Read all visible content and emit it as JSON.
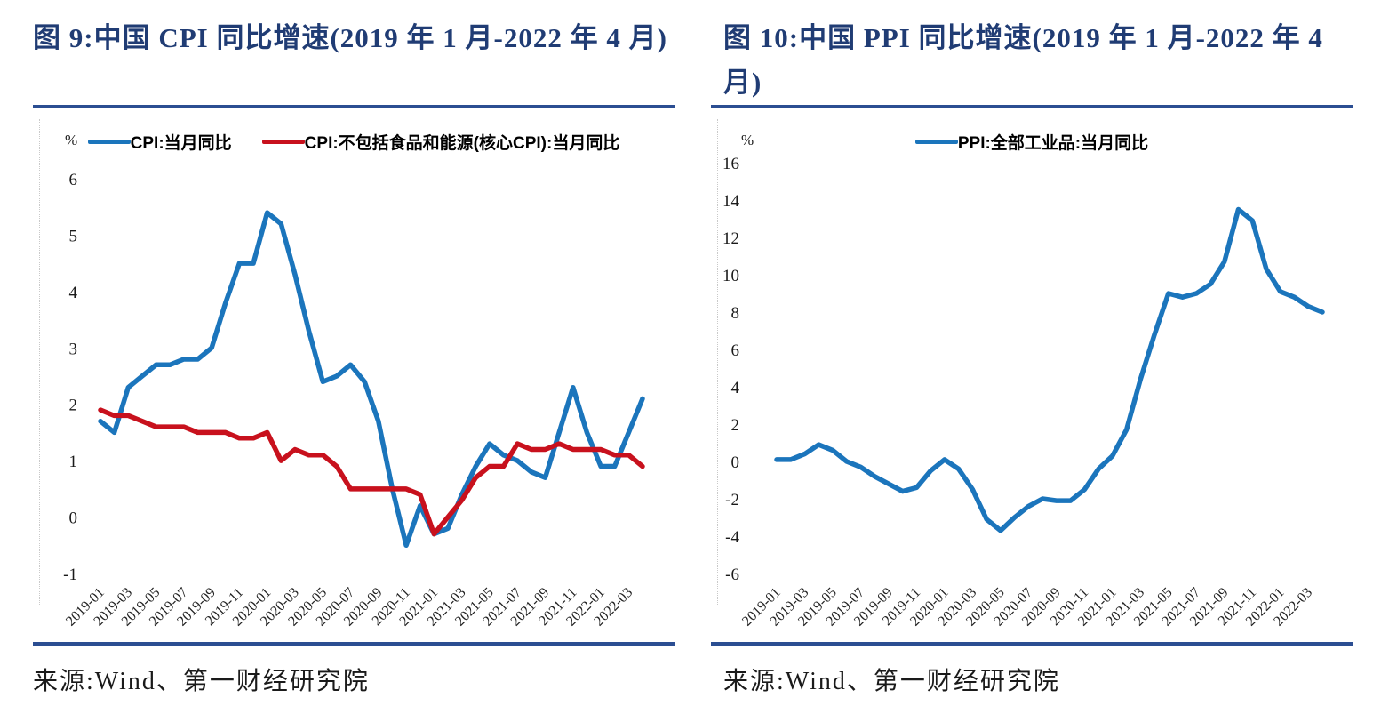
{
  "chart_data": [
    {
      "type": "line",
      "title": "图 9:中国 CPI 同比增速(2019 年 1 月-2022 年 4 月)",
      "unit": "%",
      "grid": false,
      "legend_position": "top-center",
      "x": [
        "2019-01",
        "2019-02",
        "2019-03",
        "2019-04",
        "2019-05",
        "2019-06",
        "2019-07",
        "2019-08",
        "2019-09",
        "2019-10",
        "2019-11",
        "2019-12",
        "2020-01",
        "2020-02",
        "2020-03",
        "2020-04",
        "2020-05",
        "2020-06",
        "2020-07",
        "2020-08",
        "2020-09",
        "2020-10",
        "2020-11",
        "2020-12",
        "2021-01",
        "2021-02",
        "2021-03",
        "2021-04",
        "2021-05",
        "2021-06",
        "2021-07",
        "2021-08",
        "2021-09",
        "2021-10",
        "2021-11",
        "2021-12",
        "2022-01",
        "2022-02",
        "2022-03",
        "2022-04"
      ],
      "xtick_every": 2,
      "ylim": [
        -1,
        6
      ],
      "ytick_step": 1,
      "series": [
        {
          "name": "CPI:当月同比",
          "color": "#1b75bc",
          "values": [
            1.7,
            1.5,
            2.3,
            2.5,
            2.7,
            2.7,
            2.8,
            2.8,
            3.0,
            3.8,
            4.5,
            4.5,
            5.4,
            5.2,
            4.3,
            3.3,
            2.4,
            2.5,
            2.7,
            2.4,
            1.7,
            0.5,
            -0.5,
            0.2,
            -0.3,
            -0.2,
            0.4,
            0.9,
            1.3,
            1.1,
            1.0,
            0.8,
            0.7,
            1.5,
            2.3,
            1.5,
            0.9,
            0.9,
            1.5,
            2.1
          ]
        },
        {
          "name": "CPI:不包括食品和能源(核心CPI):当月同比",
          "color": "#c8111d",
          "values": [
            1.9,
            1.8,
            1.8,
            1.7,
            1.6,
            1.6,
            1.6,
            1.5,
            1.5,
            1.5,
            1.4,
            1.4,
            1.5,
            1.0,
            1.2,
            1.1,
            1.1,
            0.9,
            0.5,
            0.5,
            0.5,
            0.5,
            0.5,
            0.4,
            -0.3,
            0.0,
            0.3,
            0.7,
            0.9,
            0.9,
            1.3,
            1.2,
            1.2,
            1.3,
            1.2,
            1.2,
            1.2,
            1.1,
            1.1,
            0.9
          ]
        }
      ],
      "source": "来源:Wind、第一财经研究院"
    },
    {
      "type": "line",
      "title": "图 10:中国 PPI 同比增速(2019 年 1 月-2022 年 4 月)",
      "unit": "%",
      "grid": false,
      "legend_position": "top-center",
      "x": [
        "2019-01",
        "2019-02",
        "2019-03",
        "2019-04",
        "2019-05",
        "2019-06",
        "2019-07",
        "2019-08",
        "2019-09",
        "2019-10",
        "2019-11",
        "2019-12",
        "2020-01",
        "2020-02",
        "2020-03",
        "2020-04",
        "2020-05",
        "2020-06",
        "2020-07",
        "2020-08",
        "2020-09",
        "2020-10",
        "2020-11",
        "2020-12",
        "2021-01",
        "2021-02",
        "2021-03",
        "2021-04",
        "2021-05",
        "2021-06",
        "2021-07",
        "2021-08",
        "2021-09",
        "2021-10",
        "2021-11",
        "2021-12",
        "2022-01",
        "2022-02",
        "2022-03",
        "2022-04"
      ],
      "xtick_every": 2,
      "ylim": [
        -6,
        16
      ],
      "ytick_step": 2,
      "series": [
        {
          "name": "PPI:全部工业品:当月同比",
          "color": "#1b75bc",
          "values": [
            0.1,
            0.1,
            0.4,
            0.9,
            0.6,
            0.0,
            -0.3,
            -0.8,
            -1.2,
            -1.6,
            -1.4,
            -0.5,
            0.1,
            -0.4,
            -1.5,
            -3.1,
            -3.7,
            -3.0,
            -2.4,
            -2.0,
            -2.1,
            -2.1,
            -1.5,
            -0.4,
            0.3,
            1.7,
            4.4,
            6.8,
            9.0,
            8.8,
            9.0,
            9.5,
            10.7,
            13.5,
            12.9,
            10.3,
            9.1,
            8.8,
            8.3,
            8.0
          ]
        }
      ],
      "source": "来源:Wind、第一财经研究院"
    }
  ]
}
